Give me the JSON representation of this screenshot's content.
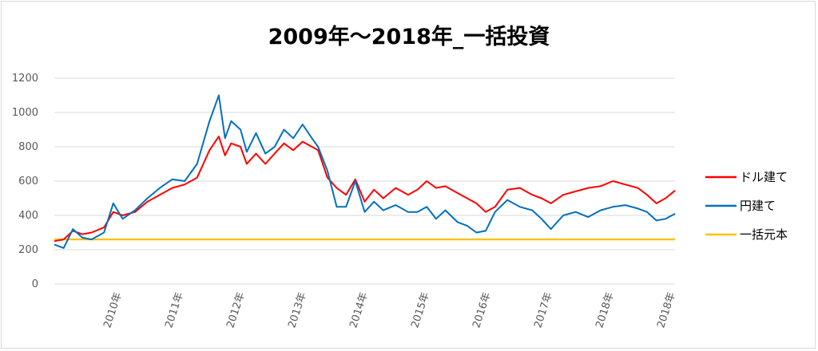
{
  "chart_data": {
    "type": "line",
    "title": "2009年～2018年_一括投資",
    "ylim": [
      0,
      1200
    ],
    "yticks": [
      "0",
      "200",
      "400",
      "600",
      "800",
      "1000",
      "1200"
    ],
    "xticks": [
      "2010年",
      "2011年",
      "2012年",
      "2013年",
      "2014年",
      "2015年",
      "2016年",
      "2017年",
      "2018年",
      "2018年"
    ],
    "grid": true,
    "legend_position": "right",
    "series": [
      {
        "name": "ドル建て",
        "color": "#ff0000",
        "x": [
          2009.0,
          2009.15,
          2009.3,
          2009.45,
          2009.6,
          2009.8,
          2009.95,
          2010.1,
          2010.3,
          2010.5,
          2010.7,
          2010.9,
          2011.1,
          2011.3,
          2011.5,
          2011.65,
          2011.75,
          2011.85,
          2012.0,
          2012.1,
          2012.25,
          2012.4,
          2012.55,
          2012.7,
          2012.85,
          2013.0,
          2013.15,
          2013.25,
          2013.4,
          2013.55,
          2013.7,
          2013.85,
          2014.0,
          2014.15,
          2014.3,
          2014.5,
          2014.7,
          2014.85,
          2015.0,
          2015.15,
          2015.3,
          2015.5,
          2015.65,
          2015.8,
          2015.95,
          2016.1,
          2016.3,
          2016.5,
          2016.7,
          2016.85,
          2017.0,
          2017.2,
          2017.4,
          2017.6,
          2017.8,
          2018.0,
          2018.2,
          2018.4,
          2018.55,
          2018.7,
          2018.85,
          2019.0
        ],
        "y": [
          250,
          260,
          310,
          290,
          300,
          330,
          420,
          400,
          420,
          480,
          520,
          560,
          580,
          620,
          780,
          860,
          750,
          820,
          800,
          700,
          760,
          700,
          760,
          820,
          780,
          830,
          800,
          780,
          620,
          560,
          520,
          610,
          480,
          550,
          500,
          560,
          520,
          550,
          600,
          560,
          570,
          530,
          500,
          470,
          420,
          450,
          550,
          560,
          520,
          500,
          470,
          520,
          540,
          560,
          570,
          600,
          580,
          560,
          520,
          470,
          500,
          545
        ]
      },
      {
        "name": "円建て",
        "color": "#0070c0",
        "x": [
          2009.0,
          2009.15,
          2009.3,
          2009.45,
          2009.6,
          2009.8,
          2009.95,
          2010.1,
          2010.3,
          2010.5,
          2010.7,
          2010.9,
          2011.1,
          2011.3,
          2011.5,
          2011.65,
          2011.75,
          2011.85,
          2012.0,
          2012.1,
          2012.25,
          2012.4,
          2012.55,
          2012.7,
          2012.85,
          2013.0,
          2013.15,
          2013.25,
          2013.4,
          2013.55,
          2013.7,
          2013.85,
          2014.0,
          2014.15,
          2014.3,
          2014.5,
          2014.7,
          2014.85,
          2015.0,
          2015.15,
          2015.3,
          2015.5,
          2015.65,
          2015.8,
          2015.95,
          2016.1,
          2016.3,
          2016.5,
          2016.7,
          2016.85,
          2017.0,
          2017.2,
          2017.4,
          2017.6,
          2017.8,
          2018.0,
          2018.2,
          2018.4,
          2018.55,
          2018.7,
          2018.85,
          2019.0
        ],
        "y": [
          230,
          210,
          320,
          270,
          260,
          300,
          470,
          380,
          430,
          500,
          560,
          610,
          600,
          700,
          950,
          1100,
          850,
          950,
          900,
          770,
          880,
          760,
          800,
          900,
          850,
          930,
          850,
          800,
          660,
          450,
          450,
          600,
          420,
          480,
          430,
          460,
          420,
          420,
          450,
          380,
          430,
          360,
          340,
          300,
          310,
          420,
          490,
          450,
          430,
          380,
          320,
          400,
          420,
          390,
          430,
          450,
          460,
          440,
          420,
          370,
          380,
          410
        ]
      },
      {
        "name": "一括元本",
        "color": "#ffc000",
        "x": [
          2009.0,
          2019.0
        ],
        "y": [
          260,
          260
        ]
      }
    ]
  }
}
